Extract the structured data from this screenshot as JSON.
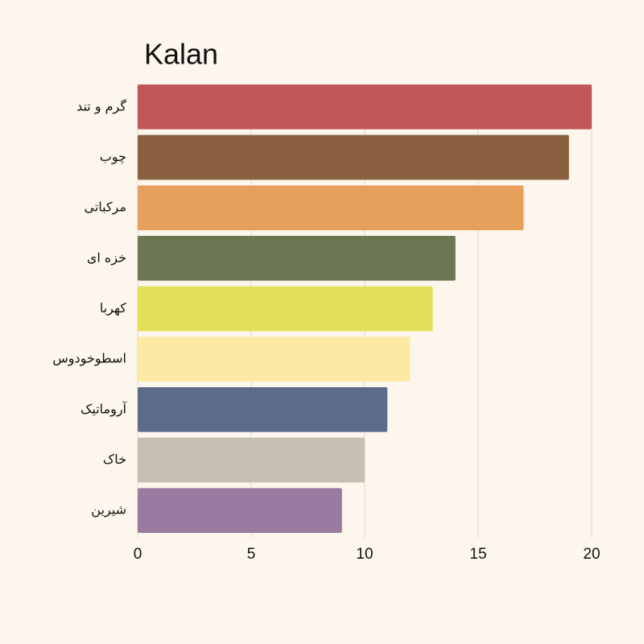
{
  "chart_data": {
    "type": "barh",
    "title": "Kalan",
    "categories": [
      "گرم و تند",
      "چوب",
      "مرکباتی",
      "خزه ای",
      "کهربا",
      "اسطوخودوس",
      "آروماتیک",
      "خاک",
      "شیرین"
    ],
    "values": [
      20,
      19,
      17,
      14,
      13,
      12,
      11,
      10,
      9
    ],
    "colors": [
      "#c0585a",
      "#8a6040",
      "#e6a05c",
      "#6b7753",
      "#e3df5b",
      "#fce9a3",
      "#5d6b8a",
      "#c5bfb1",
      "#9a7aa0"
    ],
    "xlim": [
      0,
      20
    ],
    "xticks": [
      0,
      5,
      10,
      15,
      20
    ],
    "grid": true
  }
}
